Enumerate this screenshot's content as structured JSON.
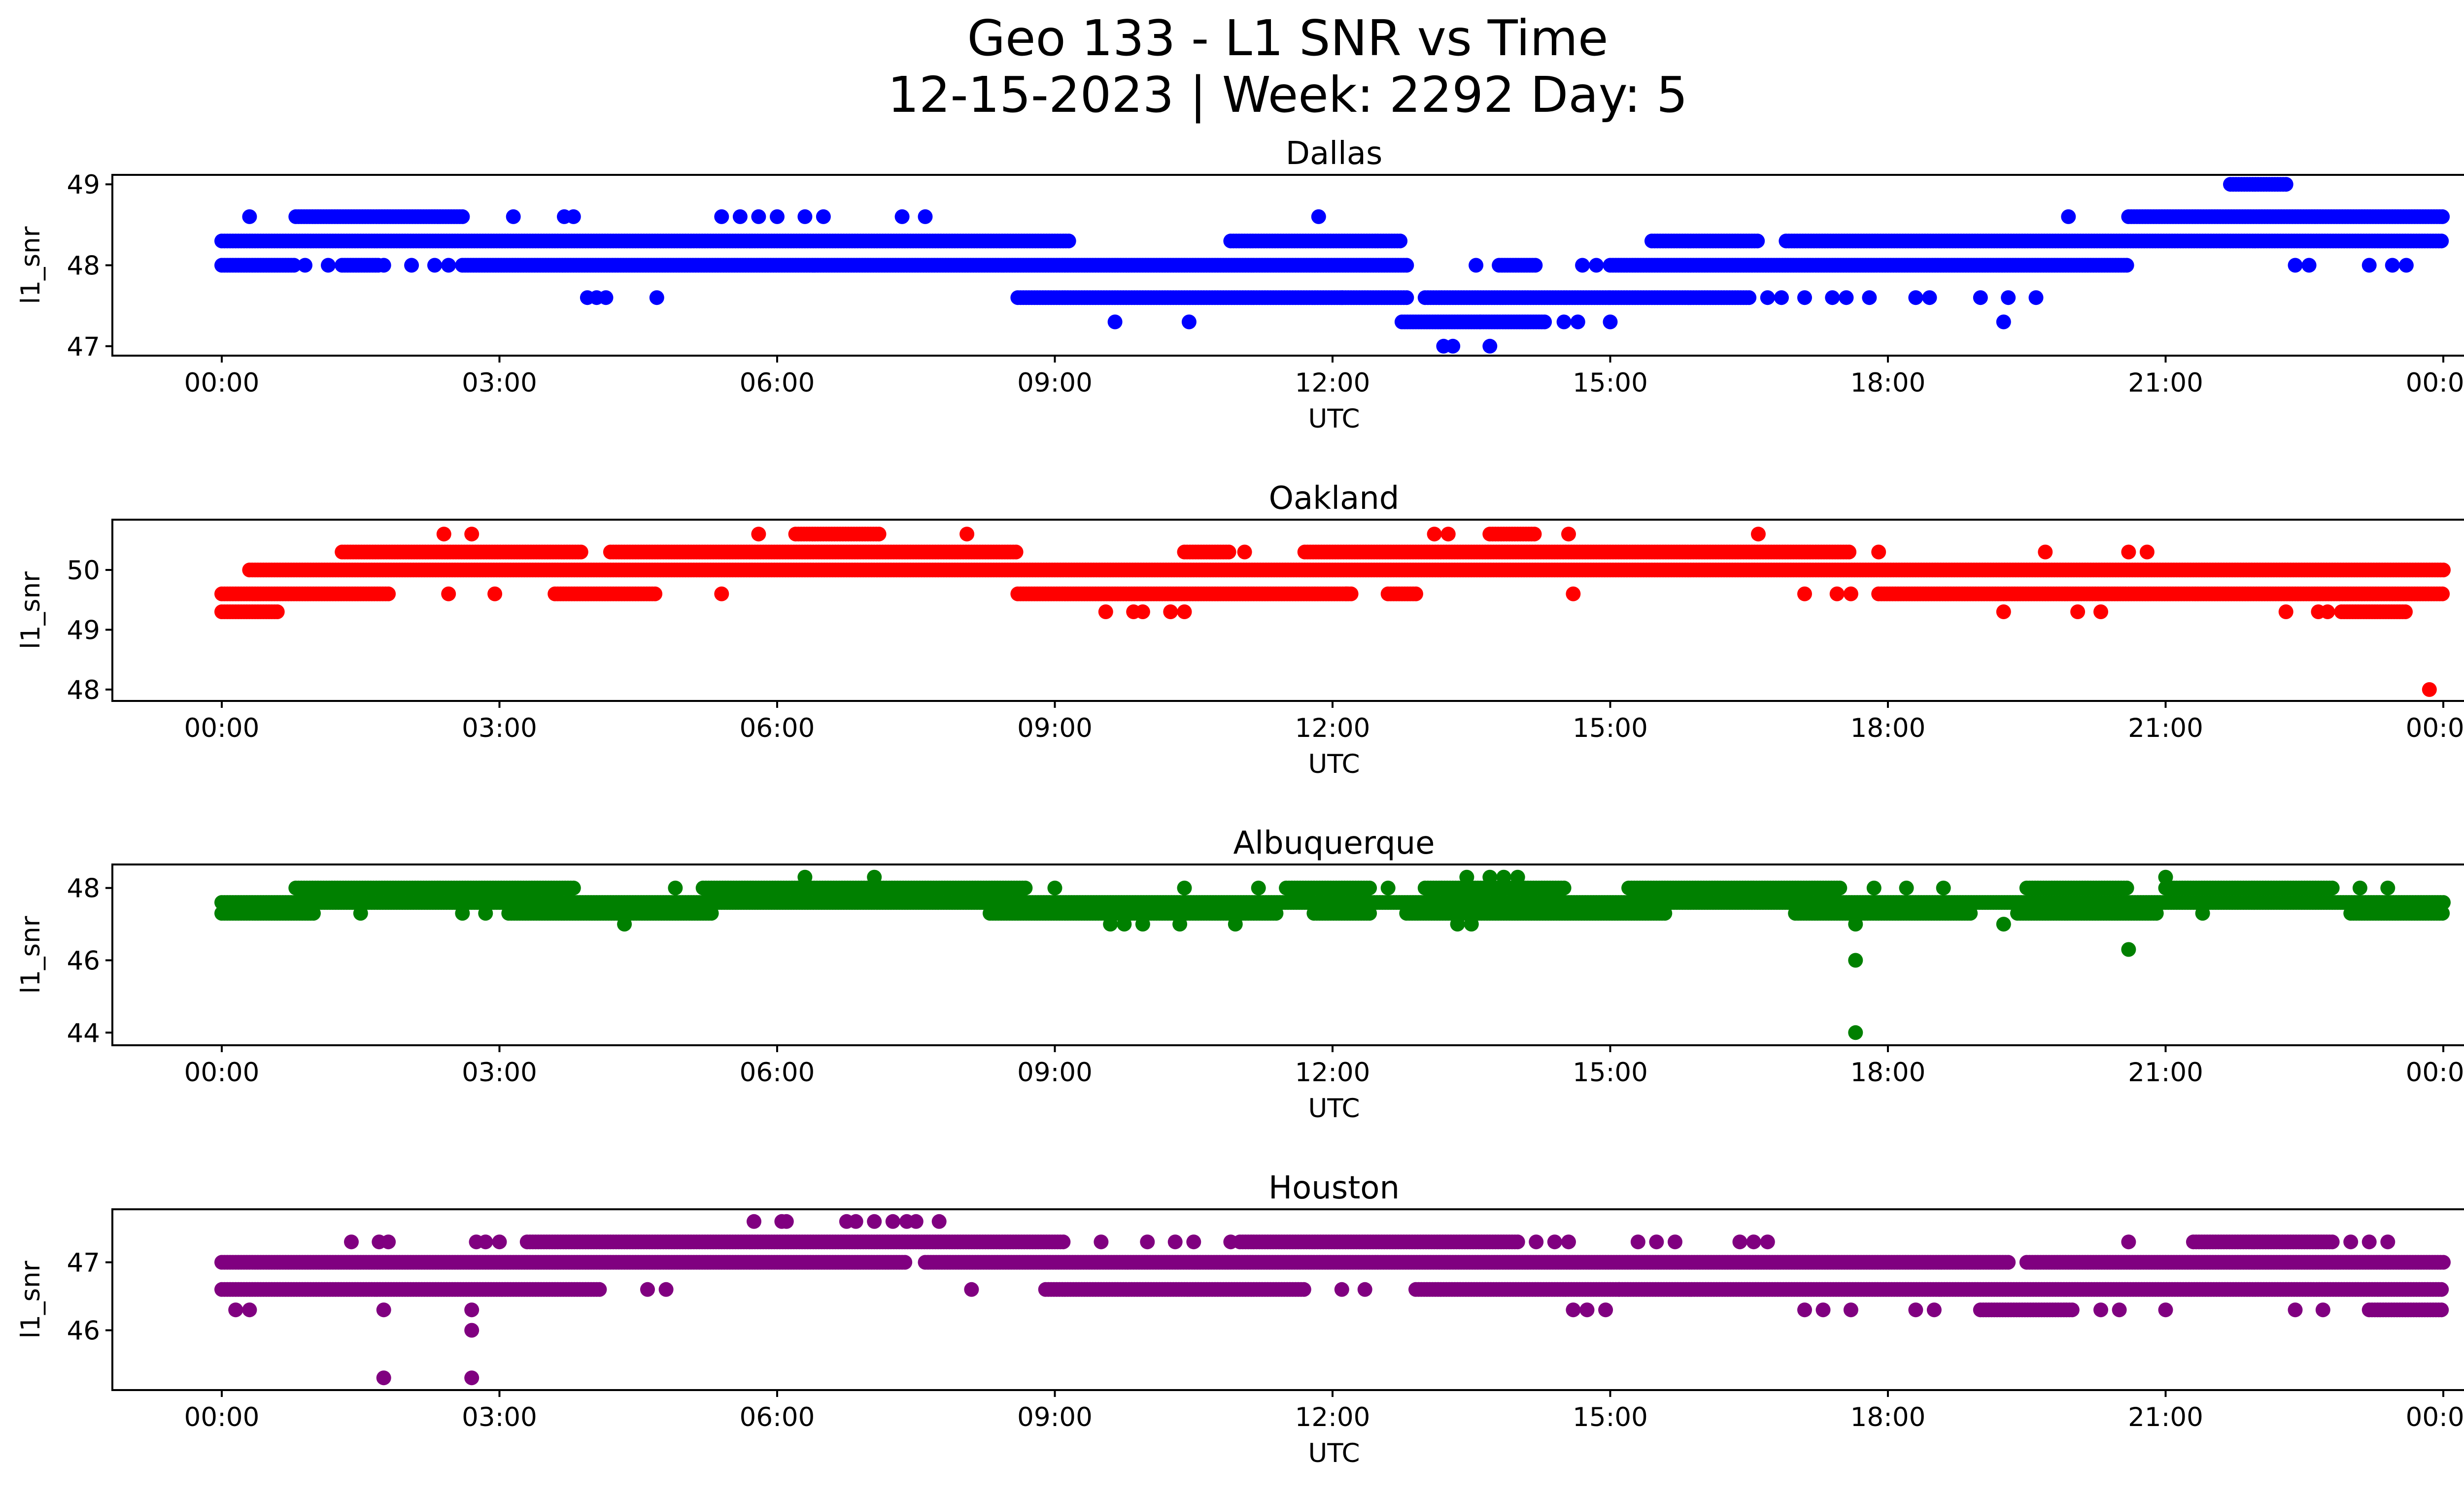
{
  "figure": {
    "title_line1": "Geo 133 - L1 SNR vs Time",
    "title_line2": "12-15-2023 | Week: 2292 Day: 5"
  },
  "chart_data": [
    {
      "type": "scatter",
      "title": "Dallas",
      "xlabel": "UTC",
      "ylabel": "l1_snr",
      "color": "#0000ff",
      "x_ticks": [
        "00:00",
        "03:00",
        "06:00",
        "09:00",
        "12:00",
        "15:00",
        "18:00",
        "21:00",
        "00:00"
      ],
      "y_ticks": [
        47,
        48,
        49
      ],
      "xlim": [
        0,
        24
      ],
      "ylim": [
        46.95,
        49.05
      ],
      "dense_bands": [
        {
          "y": 48.3,
          "ranges": [
            [
              0.0,
              9.15
            ],
            [
              10.9,
              12.75
            ],
            [
              15.45,
              16.6
            ],
            [
              16.9,
              24.0
            ]
          ]
        },
        {
          "y": 48.0,
          "ranges": [
            [
              0.0,
              0.8
            ],
            [
              1.3,
              1.7
            ],
            [
              2.6,
              12.8
            ],
            [
              13.8,
              14.2
            ],
            [
              15.0,
              20.6
            ]
          ]
        },
        {
          "y": 47.6,
          "ranges": [
            [
              8.6,
              12.8
            ],
            [
              13.0,
              15.0
            ],
            [
              15.0,
              16.5
            ]
          ]
        },
        {
          "y": 47.3,
          "ranges": [
            [
              12.75,
              13.6
            ],
            [
              13.6,
              14.3
            ]
          ]
        },
        {
          "y": 48.6,
          "ranges": [
            [
              0.8,
              2.6
            ],
            [
              20.6,
              24.0
            ]
          ]
        },
        {
          "y": 49.0,
          "ranges": [
            [
              21.7,
              22.3
            ]
          ]
        }
      ],
      "sparse_points": [
        [
          0.3,
          48.6
        ],
        [
          3.15,
          48.6
        ],
        [
          3.7,
          48.6
        ],
        [
          3.8,
          48.6
        ],
        [
          5.4,
          48.6
        ],
        [
          5.6,
          48.6
        ],
        [
          5.8,
          48.6
        ],
        [
          6.0,
          48.6
        ],
        [
          6.3,
          48.6
        ],
        [
          6.5,
          48.6
        ],
        [
          7.35,
          48.6
        ],
        [
          7.6,
          48.6
        ],
        [
          11.85,
          48.6
        ],
        [
          19.95,
          48.6
        ],
        [
          0.9,
          48.0
        ],
        [
          1.15,
          48.0
        ],
        [
          1.75,
          48.0
        ],
        [
          2.05,
          48.0
        ],
        [
          2.3,
          48.0
        ],
        [
          2.45,
          48.0
        ],
        [
          13.55,
          48.0
        ],
        [
          14.7,
          48.0
        ],
        [
          14.85,
          48.0
        ],
        [
          22.4,
          48.0
        ],
        [
          22.55,
          48.0
        ],
        [
          23.2,
          48.0
        ],
        [
          23.45,
          48.0
        ],
        [
          23.6,
          48.0
        ],
        [
          3.95,
          47.6
        ],
        [
          4.05,
          47.6
        ],
        [
          4.15,
          47.6
        ],
        [
          4.7,
          47.6
        ],
        [
          11.9,
          47.6
        ],
        [
          12.1,
          47.6
        ],
        [
          16.7,
          47.6
        ],
        [
          16.85,
          47.6
        ],
        [
          17.1,
          47.6
        ],
        [
          17.4,
          47.6
        ],
        [
          17.55,
          47.6
        ],
        [
          17.8,
          47.6
        ],
        [
          18.3,
          47.6
        ],
        [
          18.45,
          47.6
        ],
        [
          19.0,
          47.6
        ],
        [
          19.3,
          47.6
        ],
        [
          19.6,
          47.6
        ],
        [
          9.65,
          47.3
        ],
        [
          10.45,
          47.3
        ],
        [
          14.5,
          47.3
        ],
        [
          14.65,
          47.3
        ],
        [
          15.0,
          47.3
        ],
        [
          19.25,
          47.3
        ],
        [
          13.2,
          47.0
        ],
        [
          13.3,
          47.0
        ],
        [
          13.7,
          47.0
        ]
      ]
    },
    {
      "type": "scatter",
      "title": "Oakland",
      "xlabel": "UTC",
      "ylabel": "l1_snr",
      "color": "#ff0000",
      "x_ticks": [
        "00:00",
        "03:00",
        "06:00",
        "09:00",
        "12:00",
        "15:00",
        "18:00",
        "21:00",
        "00:00"
      ],
      "y_ticks": [
        48,
        49,
        50
      ],
      "xlim": [
        0,
        24
      ],
      "ylim": [
        47.9,
        50.75
      ],
      "dense_bands": [
        {
          "y": 50.0,
          "ranges": [
            [
              0.3,
              24.0
            ]
          ]
        },
        {
          "y": 49.6,
          "ranges": [
            [
              0.0,
              1.8
            ],
            [
              3.6,
              4.7
            ],
            [
              8.6,
              12.2
            ],
            [
              12.6,
              12.9
            ],
            [
              17.9,
              24.0
            ]
          ]
        },
        {
          "y": 50.3,
          "ranges": [
            [
              1.3,
              3.9
            ],
            [
              4.2,
              8.6
            ],
            [
              10.4,
              10.9
            ],
            [
              11.7,
              17.6
            ]
          ]
        },
        {
          "y": 49.3,
          "ranges": [
            [
              0.0,
              0.6
            ],
            [
              22.9,
              23.6
            ]
          ]
        },
        {
          "y": 50.6,
          "ranges": [
            [
              6.2,
              7.1
            ],
            [
              13.7,
              14.2
            ]
          ]
        }
      ],
      "sparse_points": [
        [
          2.4,
          50.6
        ],
        [
          2.7,
          50.6
        ],
        [
          5.8,
          50.6
        ],
        [
          8.05,
          50.6
        ],
        [
          13.1,
          50.6
        ],
        [
          13.25,
          50.6
        ],
        [
          14.55,
          50.6
        ],
        [
          16.6,
          50.6
        ],
        [
          11.05,
          50.3
        ],
        [
          17.9,
          50.3
        ],
        [
          19.7,
          50.3
        ],
        [
          20.6,
          50.3
        ],
        [
          20.8,
          50.3
        ],
        [
          2.45,
          49.6
        ],
        [
          2.95,
          49.6
        ],
        [
          5.4,
          49.6
        ],
        [
          12.15,
          49.6
        ],
        [
          14.6,
          49.6
        ],
        [
          17.1,
          49.6
        ],
        [
          17.45,
          49.6
        ],
        [
          17.6,
          49.6
        ],
        [
          9.55,
          49.3
        ],
        [
          9.85,
          49.3
        ],
        [
          9.95,
          49.3
        ],
        [
          10.25,
          49.3
        ],
        [
          10.4,
          49.3
        ],
        [
          19.25,
          49.3
        ],
        [
          20.05,
          49.3
        ],
        [
          20.3,
          49.3
        ],
        [
          22.3,
          49.3
        ],
        [
          22.65,
          49.3
        ],
        [
          22.75,
          49.3
        ],
        [
          23.85,
          48.0
        ]
      ]
    },
    {
      "type": "scatter",
      "title": "Albuquerque",
      "xlabel": "UTC",
      "ylabel": "l1_snr",
      "color": "#008000",
      "x_ticks": [
        "00:00",
        "03:00",
        "06:00",
        "09:00",
        "12:00",
        "15:00",
        "18:00",
        "21:00",
        "00:00"
      ],
      "y_ticks": [
        44,
        46,
        48
      ],
      "xlim": [
        0,
        24
      ],
      "ylim": [
        43.8,
        48.5
      ],
      "dense_bands": [
        {
          "y": 47.6,
          "ranges": [
            [
              0.0,
              24.0
            ]
          ]
        },
        {
          "y": 47.3,
          "ranges": [
            [
              0.0,
              1.0
            ],
            [
              3.1,
              5.3
            ],
            [
              8.3,
              11.4
            ],
            [
              11.8,
              12.4
            ],
            [
              12.8,
              15.6
            ],
            [
              17.0,
              18.9
            ],
            [
              19.4,
              20.9
            ],
            [
              23.0,
              24.0
            ]
          ]
        },
        {
          "y": 48.0,
          "ranges": [
            [
              0.8,
              3.8
            ],
            [
              5.2,
              8.7
            ],
            [
              11.5,
              12.4
            ],
            [
              13.0,
              14.5
            ],
            [
              15.2,
              17.5
            ],
            [
              19.5,
              20.6
            ],
            [
              21.0,
              22.8
            ]
          ]
        }
      ],
      "sparse_points": [
        [
          4.35,
          47.0
        ],
        [
          9.6,
          47.0
        ],
        [
          9.75,
          47.0
        ],
        [
          9.95,
          47.0
        ],
        [
          10.35,
          47.0
        ],
        [
          10.95,
          47.0
        ],
        [
          13.35,
          47.0
        ],
        [
          13.5,
          47.0
        ],
        [
          17.65,
          47.0
        ],
        [
          19.25,
          47.0
        ],
        [
          1.5,
          47.3
        ],
        [
          2.6,
          47.3
        ],
        [
          2.85,
          47.3
        ],
        [
          21.4,
          47.3
        ],
        [
          4.9,
          48.0
        ],
        [
          9.0,
          48.0
        ],
        [
          10.4,
          48.0
        ],
        [
          11.2,
          48.0
        ],
        [
          12.6,
          48.0
        ],
        [
          17.85,
          48.0
        ],
        [
          18.2,
          48.0
        ],
        [
          18.6,
          48.0
        ],
        [
          23.1,
          48.0
        ],
        [
          23.4,
          48.0
        ],
        [
          6.3,
          48.3
        ],
        [
          7.05,
          48.3
        ],
        [
          13.45,
          48.3
        ],
        [
          13.7,
          48.3
        ],
        [
          13.85,
          48.3
        ],
        [
          14.0,
          48.3
        ],
        [
          21.0,
          48.3
        ],
        [
          17.65,
          46.0
        ],
        [
          20.6,
          46.3
        ],
        [
          17.65,
          44.0
        ]
      ]
    },
    {
      "type": "scatter",
      "title": "Houston",
      "xlabel": "UTC",
      "ylabel": "l1_snr",
      "color": "#800080",
      "x_ticks": [
        "00:00",
        "03:00",
        "06:00",
        "09:00",
        "12:00",
        "15:00",
        "18:00",
        "21:00",
        "00:00"
      ],
      "y_ticks": [
        46,
        47
      ],
      "xlim": [
        0,
        24
      ],
      "ylim": [
        45.2,
        47.7
      ],
      "dense_bands": [
        {
          "y": 47.0,
          "ranges": [
            [
              0.0,
              7.4
            ],
            [
              7.6,
              19.3
            ],
            [
              19.5,
              24.0
            ]
          ]
        },
        {
          "y": 46.6,
          "ranges": [
            [
              0.0,
              4.1
            ],
            [
              8.9,
              11.7
            ],
            [
              12.9,
              15.1
            ],
            [
              15.1,
              24.0
            ]
          ]
        },
        {
          "y": 47.3,
          "ranges": [
            [
              3.3,
              9.1
            ],
            [
              11.0,
              14.0
            ],
            [
              21.3,
              22.8
            ]
          ]
        },
        {
          "y": 46.3,
          "ranges": [
            [
              19.0,
              20.0
            ],
            [
              23.2,
              24.0
            ]
          ]
        }
      ],
      "sparse_points": [
        [
          1.4,
          47.3
        ],
        [
          1.7,
          47.3
        ],
        [
          1.8,
          47.3
        ],
        [
          2.75,
          47.3
        ],
        [
          2.85,
          47.3
        ],
        [
          3.0,
          47.3
        ],
        [
          9.5,
          47.3
        ],
        [
          10.0,
          47.3
        ],
        [
          10.3,
          47.3
        ],
        [
          10.5,
          47.3
        ],
        [
          10.9,
          47.3
        ],
        [
          14.2,
          47.3
        ],
        [
          14.4,
          47.3
        ],
        [
          14.55,
          47.3
        ],
        [
          15.3,
          47.3
        ],
        [
          15.5,
          47.3
        ],
        [
          15.7,
          47.3
        ],
        [
          16.4,
          47.3
        ],
        [
          16.55,
          47.3
        ],
        [
          16.7,
          47.3
        ],
        [
          20.6,
          47.3
        ],
        [
          23.0,
          47.3
        ],
        [
          23.2,
          47.3
        ],
        [
          23.4,
          47.3
        ],
        [
          0.15,
          46.3
        ],
        [
          0.3,
          46.3
        ],
        [
          1.75,
          46.3
        ],
        [
          2.7,
          46.3
        ],
        [
          14.6,
          46.3
        ],
        [
          14.75,
          46.3
        ],
        [
          14.95,
          46.3
        ],
        [
          17.1,
          46.3
        ],
        [
          17.3,
          46.3
        ],
        [
          17.6,
          46.3
        ],
        [
          18.3,
          46.3
        ],
        [
          18.5,
          46.3
        ],
        [
          20.3,
          46.3
        ],
        [
          20.5,
          46.3
        ],
        [
          21.0,
          46.3
        ],
        [
          22.4,
          46.3
        ],
        [
          22.7,
          46.3
        ],
        [
          2.7,
          46.0
        ],
        [
          1.75,
          45.3
        ],
        [
          2.7,
          45.3
        ],
        [
          4.6,
          46.6
        ],
        [
          4.8,
          46.6
        ],
        [
          8.1,
          46.6
        ],
        [
          12.1,
          46.6
        ],
        [
          12.35,
          46.6
        ],
        [
          5.75,
          47.6
        ],
        [
          6.05,
          47.6
        ],
        [
          6.1,
          47.6
        ],
        [
          6.75,
          47.6
        ],
        [
          6.85,
          47.6
        ],
        [
          7.05,
          47.6
        ],
        [
          7.25,
          47.6
        ],
        [
          7.4,
          47.6
        ],
        [
          7.5,
          47.6
        ],
        [
          7.75,
          47.6
        ]
      ]
    }
  ]
}
